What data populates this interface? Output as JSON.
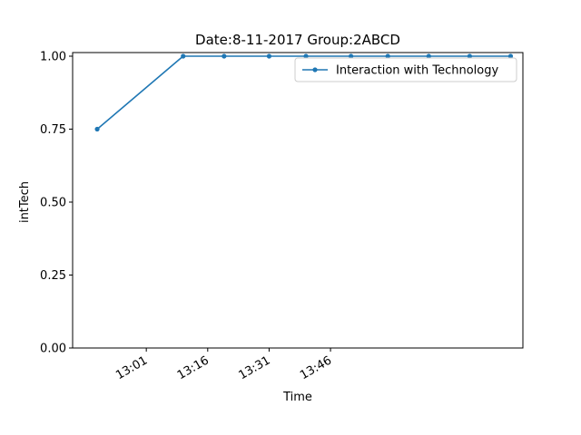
{
  "chart_data": {
    "type": "line",
    "title": "Date:8-11-2017  Group:2ABCD",
    "xlabel": "Time",
    "ylabel": "intTech",
    "x": [
      "12:49",
      "13:10",
      "13:20",
      "13:31",
      "13:40",
      "13:51",
      "14:00",
      "14:10",
      "14:20",
      "14:30"
    ],
    "series": [
      {
        "name": "Interaction with Technology",
        "color": "#1f77b4",
        "values": [
          0.75,
          1.0,
          1.0,
          1.0,
          1.0,
          1.0,
          1.0,
          1.0,
          1.0,
          1.0
        ]
      }
    ],
    "x_ticks": [
      "13:01",
      "13:16",
      "13:31",
      "13:46"
    ],
    "y_ticks": [
      "0.00",
      "0.25",
      "0.50",
      "0.75",
      "1.00"
    ],
    "ylim": [
      0,
      1.0
    ],
    "grid": false,
    "legend_position": "top-right"
  }
}
